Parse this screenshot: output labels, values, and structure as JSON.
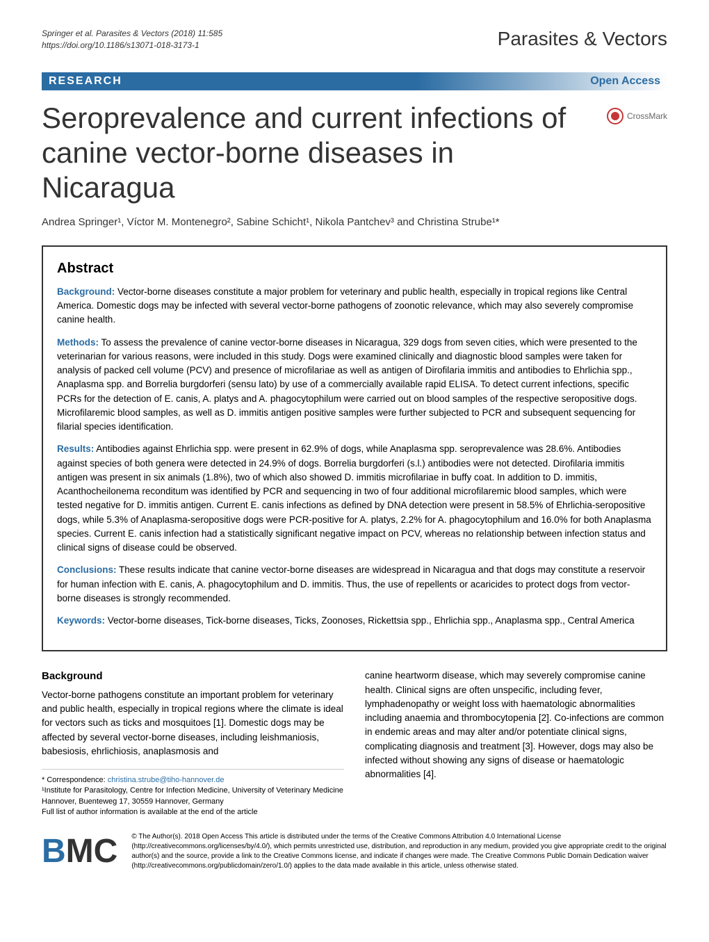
{
  "header": {
    "citation_line1": "Springer et al. Parasites & Vectors     (2018) 11:585",
    "citation_line2": "https://doi.org/10.1186/s13071-018-3173-1",
    "journal": "Parasites & Vectors"
  },
  "research_bar": {
    "label": "RESEARCH",
    "open_access": "Open Access"
  },
  "crossmark": "CrossMark",
  "title": "Seroprevalence and current infections of canine vector-borne diseases in Nicaragua",
  "authors": "Andrea Springer¹, Víctor M. Montenegro², Sabine Schicht¹, Nikola Pantchev³ and Christina Strube¹*",
  "abstract": {
    "heading": "Abstract",
    "background_label": "Background:",
    "background": " Vector-borne diseases constitute a major problem for veterinary and public health, especially in tropical regions like Central America. Domestic dogs may be infected with several vector-borne pathogens of zoonotic relevance, which may also severely compromise canine health.",
    "methods_label": "Methods:",
    "methods": " To assess the prevalence of canine vector-borne diseases in Nicaragua, 329 dogs from seven cities, which were presented to the veterinarian for various reasons, were included in this study. Dogs were examined clinically and diagnostic blood samples were taken for analysis of packed cell volume (PCV) and presence of microfilariae as well as antigen of Dirofilaria immitis and antibodies to Ehrlichia spp., Anaplasma spp. and Borrelia burgdorferi (sensu lato) by use of a commercially available rapid ELISA. To detect current infections, specific PCRs for the detection of E. canis, A. platys and A. phagocytophilum were carried out on blood samples of the respective seropositive dogs. Microfilaremic blood samples, as well as D. immitis antigen positive samples were further subjected to PCR and subsequent sequencing for filarial species identification.",
    "results_label": "Results:",
    "results": " Antibodies against Ehrlichia spp. were present in 62.9% of dogs, while Anaplasma spp. seroprevalence was 28.6%. Antibodies against species of both genera were detected in 24.9% of dogs. Borrelia burgdorferi (s.l.) antibodies were not detected. Dirofilaria immitis antigen was present in six animals (1.8%), two of which also showed D. immitis microfilariae in buffy coat. In addition to D. immitis, Acanthocheilonema reconditum was identified by PCR and sequencing in two of four additional microfilaremic blood samples, which were tested negative for D. immitis antigen. Current E. canis infections as defined by DNA detection were present in 58.5% of Ehrlichia-seropositive dogs, while 5.3% of Anaplasma-seropositive dogs were PCR-positive for A. platys, 2.2% for A. phagocytophilum and 16.0% for both Anaplasma species. Current E. canis infection had a statistically significant negative impact on PCV, whereas no relationship between infection status and clinical signs of disease could be observed.",
    "conclusions_label": "Conclusions:",
    "conclusions": " These results indicate that canine vector-borne diseases are widespread in Nicaragua and that dogs may constitute a reservoir for human infection with E. canis, A. phagocytophilum and D. immitis. Thus, the use of repellents or acaricides to protect dogs from vector-borne diseases is strongly recommended.",
    "keywords_label": "Keywords:",
    "keywords": " Vector-borne diseases, Tick-borne diseases, Ticks, Zoonoses, Rickettsia spp., Ehrlichia spp., Anaplasma spp., Central America"
  },
  "body": {
    "background_heading": "Background",
    "col1_para": "Vector-borne pathogens constitute an important problem for veterinary and public health, especially in tropical regions where the climate is ideal for vectors such as ticks and mosquitoes [1]. Domestic dogs may be affected by several vector-borne diseases, including leishmaniosis, babesiosis, ehrlichiosis, anaplasmosis and",
    "col2_para": "canine heartworm disease, which may severely compromise canine health. Clinical signs are often unspecific, including fever, lymphadenopathy or weight loss with haematologic abnormalities including anaemia and thrombocytopenia [2]. Co-infections are common in endemic areas and may alter and/or potentiate clinical signs, complicating diagnosis and treatment [3]. However, dogs may also be infected without showing any signs of disease or haematologic abnormalities [4]."
  },
  "correspondence": {
    "label": "* Correspondence: ",
    "email": "christina.strube@tiho-hannover.de",
    "affil": "¹Institute for Parasitology, Centre for Infection Medicine, University of Veterinary Medicine Hannover, Buenteweg 17, 30559 Hannover, Germany",
    "full_list": "Full list of author information is available at the end of the article"
  },
  "footer": {
    "bmc": "BMC",
    "license": "© The Author(s). 2018 Open Access This article is distributed under the terms of the Creative Commons Attribution 4.0 International License (http://creativecommons.org/licenses/by/4.0/), which permits unrestricted use, distribution, and reproduction in any medium, provided you give appropriate credit to the original author(s) and the source, provide a link to the Creative Commons license, and indicate if changes were made. The Creative Commons Public Domain Dedication waiver (http://creativecommons.org/publicdomain/zero/1.0/) applies to the data made available in this article, unless otherwise stated."
  },
  "colors": {
    "primary_blue": "#2b6ca3",
    "crossmark_red": "#c73636",
    "text": "#333333"
  }
}
